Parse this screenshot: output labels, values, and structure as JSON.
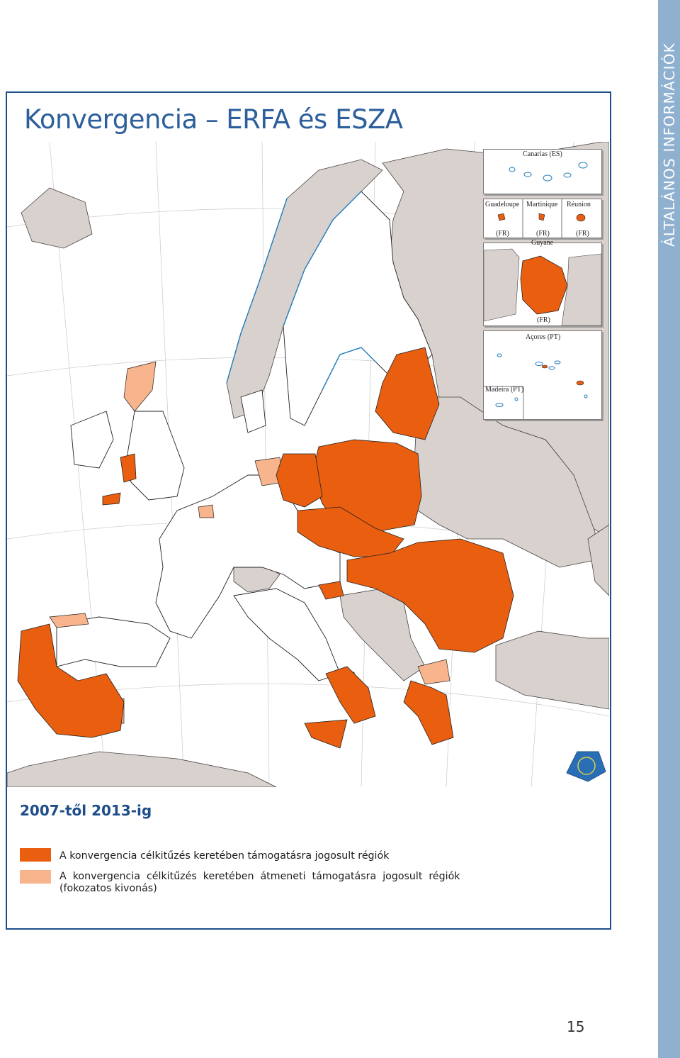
{
  "side_label": "ÁLTALÁNOS INFORMÁCIÓK",
  "title": "Konvergencia – ERFA és ESZA",
  "insets": {
    "canarias": "Canarias (ES)",
    "guadeloupe": "Guadeloupe",
    "martinique": "Martinique",
    "reunion": "Réunion",
    "fr1": "(FR)",
    "fr2": "(FR)",
    "fr3": "(FR)",
    "guyane": "Guyane",
    "fr4": "(FR)",
    "acores": "Açores (PT)",
    "madeira": "Madeira (PT)"
  },
  "legend": {
    "period": "2007-től 2013-ig",
    "items": [
      {
        "label": "A konvergencia célkitűzés keretében támogatásra jogosult régiók",
        "color": "#e95e0f"
      },
      {
        "label": "A  konvergencia  célkitűzés  keretében  átmeneti  támogatásra  jogosult  régiók",
        "label2": "(fokozatos kivonás)",
        "color": "#f8b48d"
      }
    ]
  },
  "colors": {
    "convergence": "#e95e0f",
    "phasing_out": "#f8b48d",
    "non_eu": "#d9d1cd",
    "sea": "#ffffff",
    "accent": "#1d4e89"
  },
  "page_number": "15"
}
